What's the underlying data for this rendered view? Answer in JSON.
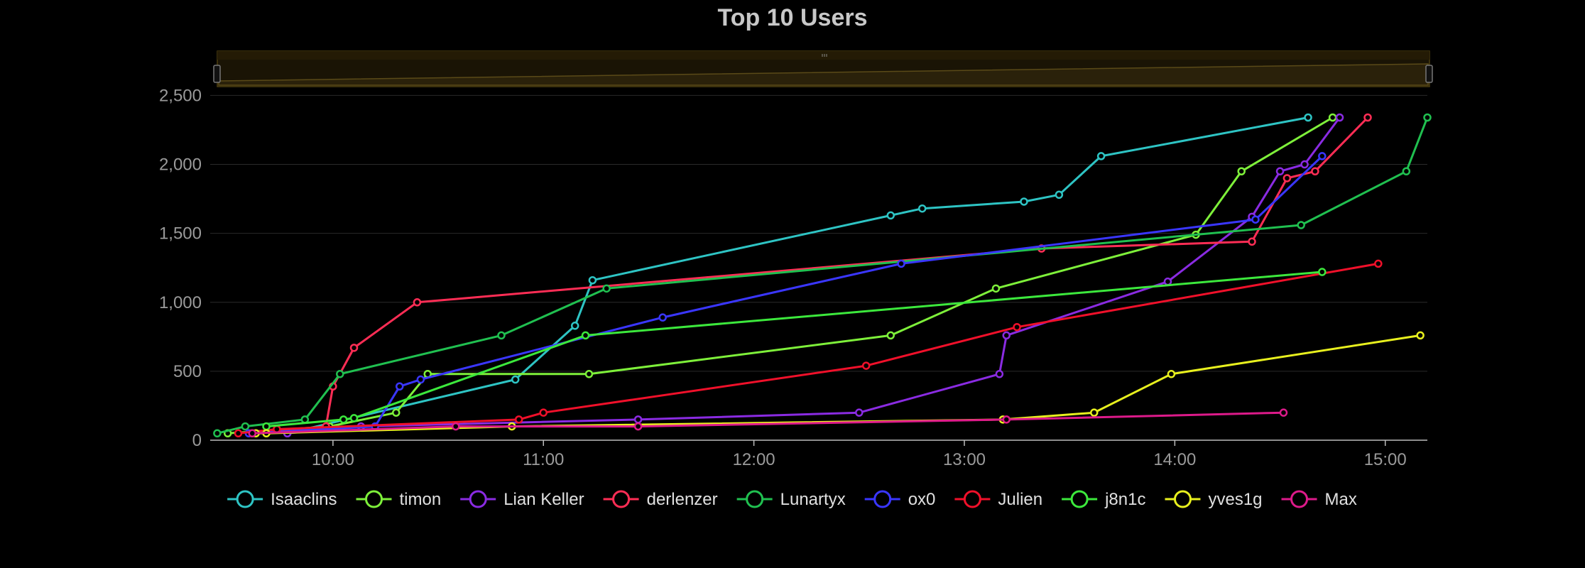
{
  "chart_data": {
    "type": "line",
    "title": "Top 10 Users",
    "xlabel": "",
    "ylabel": "",
    "x_unit": "time of day",
    "xlim": [
      "09:25",
      "15:12"
    ],
    "ylim": [
      0,
      2600
    ],
    "xticks": [
      "10:00",
      "11:00",
      "12:00",
      "13:00",
      "14:00",
      "15:00"
    ],
    "yticks": [
      "0",
      "500",
      "1,000",
      "1,500",
      "2,000",
      "2,500"
    ],
    "grid": true,
    "legend_position": "bottom",
    "series": [
      {
        "name": "Isaaclins",
        "color": "#2ec4c4",
        "points": [
          [
            "09:47",
            50
          ],
          [
            "10:52",
            440
          ],
          [
            "11:09",
            830
          ],
          [
            "11:14",
            1160
          ],
          [
            "12:39",
            1630
          ],
          [
            "12:48",
            1680
          ],
          [
            "13:17",
            1730
          ],
          [
            "13:27",
            1780
          ],
          [
            "13:39",
            2060
          ],
          [
            "14:38",
            2340
          ]
        ]
      },
      {
        "name": "timon",
        "color": "#7ef03a",
        "points": [
          [
            "09:30",
            50
          ],
          [
            "09:59",
            100
          ],
          [
            "10:18",
            200
          ],
          [
            "10:27",
            480
          ],
          [
            "11:13",
            480
          ],
          [
            "12:39",
            760
          ],
          [
            "13:09",
            1100
          ],
          [
            "14:06",
            1490
          ],
          [
            "14:19",
            1950
          ],
          [
            "14:45",
            2340
          ]
        ]
      },
      {
        "name": "Lian Keller",
        "color": "#8a2be2",
        "points": [
          [
            "09:47",
            50
          ],
          [
            "10:08",
            100
          ],
          [
            "11:27",
            150
          ],
          [
            "12:30",
            200
          ],
          [
            "13:10",
            480
          ],
          [
            "13:12",
            760
          ],
          [
            "13:58",
            1150
          ],
          [
            "14:22",
            1620
          ],
          [
            "14:30",
            1950
          ],
          [
            "14:37",
            2000
          ],
          [
            "14:47",
            2340
          ]
        ]
      },
      {
        "name": "derlenzer",
        "color": "#ff2d55",
        "points": [
          [
            "09:37",
            50
          ],
          [
            "09:58",
            100
          ],
          [
            "10:00",
            390
          ],
          [
            "10:06",
            670
          ],
          [
            "10:24",
            1000
          ],
          [
            "13:22",
            1390
          ],
          [
            "14:22",
            1440
          ],
          [
            "14:32",
            1900
          ],
          [
            "14:40",
            1950
          ],
          [
            "14:55",
            2340
          ]
        ]
      },
      {
        "name": "Lunartyx",
        "color": "#20c050",
        "points": [
          [
            "09:27",
            50
          ],
          [
            "09:35",
            100
          ],
          [
            "09:52",
            150
          ],
          [
            "10:02",
            480
          ],
          [
            "10:48",
            760
          ],
          [
            "11:18",
            1100
          ],
          [
            "14:36",
            1560
          ],
          [
            "15:06",
            1950
          ],
          [
            "15:12",
            2340
          ]
        ]
      },
      {
        "name": "ox0",
        "color": "#3a36ff",
        "points": [
          [
            "09:36",
            50
          ],
          [
            "10:12",
            100
          ],
          [
            "10:19",
            390
          ],
          [
            "10:25",
            440
          ],
          [
            "11:34",
            890
          ],
          [
            "12:42",
            1280
          ],
          [
            "14:23",
            1600
          ],
          [
            "14:42",
            2060
          ]
        ]
      },
      {
        "name": "Julien",
        "color": "#f0102a",
        "points": [
          [
            "09:33",
            50
          ],
          [
            "09:44",
            80
          ],
          [
            "10:53",
            150
          ],
          [
            "11:00",
            200
          ],
          [
            "12:32",
            540
          ],
          [
            "13:15",
            820
          ],
          [
            "14:58",
            1280
          ]
        ]
      },
      {
        "name": "j8n1c",
        "color": "#3ce83c",
        "points": [
          [
            "09:41",
            100
          ],
          [
            "10:03",
            150
          ],
          [
            "10:06",
            160
          ],
          [
            "11:12",
            760
          ],
          [
            "14:42",
            1220
          ]
        ]
      },
      {
        "name": "yves1g",
        "color": "#e8f01e",
        "points": [
          [
            "09:38",
            50
          ],
          [
            "09:41",
            50
          ],
          [
            "10:51",
            100
          ],
          [
            "13:11",
            150
          ],
          [
            "13:37",
            200
          ],
          [
            "13:59",
            480
          ],
          [
            "15:10",
            760
          ]
        ]
      },
      {
        "name": "Max",
        "color": "#dd1a8a",
        "points": [
          [
            "09:37",
            50
          ],
          [
            "10:35",
            100
          ],
          [
            "11:27",
            100
          ],
          [
            "13:12",
            150
          ],
          [
            "14:31",
            200
          ]
        ]
      }
    ]
  }
}
